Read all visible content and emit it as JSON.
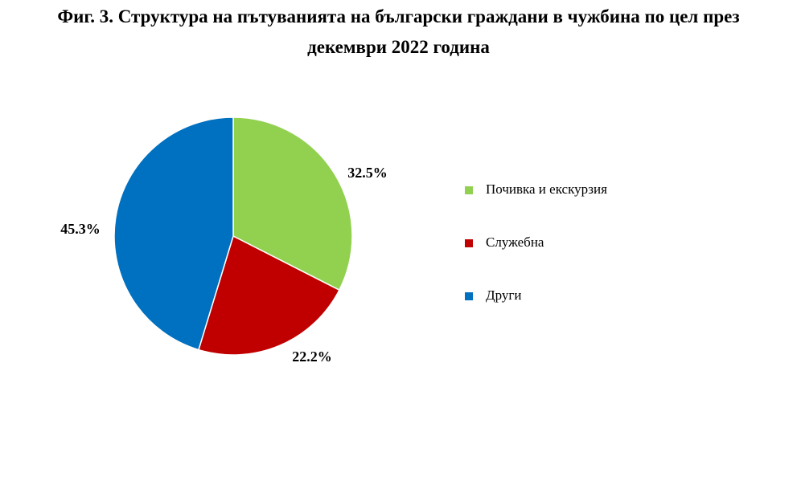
{
  "chart_data": {
    "type": "pie",
    "title": "Фиг. 3. Структура на пътуванията на български граждани в чужбина по цел през декември 2022 година",
    "categories": [
      "Почивка и екскурзия",
      "Служебна",
      "Други"
    ],
    "values": [
      32.5,
      22.2,
      45.3
    ],
    "value_labels": [
      "32.5%",
      "22.2%",
      "45.3%"
    ],
    "colors": [
      "#92d050",
      "#c00000",
      "#0070c0"
    ],
    "legend": "right"
  }
}
